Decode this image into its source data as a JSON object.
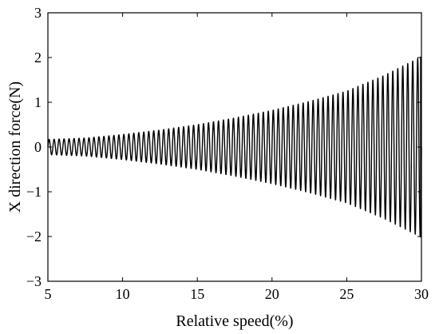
{
  "chart_data": {
    "type": "line",
    "title": "",
    "xlabel": "Relative speed(%)",
    "ylabel": "X direction force(N)",
    "xlim": [
      5,
      30
    ],
    "ylim": [
      -3,
      3
    ],
    "xticks": [
      5,
      10,
      15,
      20,
      25,
      30
    ],
    "yticks": [
      -3,
      -2,
      -1,
      0,
      1,
      2,
      3
    ],
    "xtick_labels": [
      "5",
      "10",
      "15",
      "20",
      "25",
      "30"
    ],
    "ytick_labels": [
      "−3",
      "−2",
      "−1",
      "0",
      "1",
      "2",
      "3"
    ],
    "grid": false,
    "legend": null,
    "series": [
      {
        "style": "oscillating signal with growing amplitude",
        "color": "#000000",
        "x_start": 5,
        "x_end": 30,
        "cycles": 75,
        "envelope": {
          "x": [
            5,
            7.5,
            10,
            12.5,
            15,
            17.5,
            20,
            22.5,
            25,
            27.5,
            30
          ],
          "amplitude": [
            0.17,
            0.2,
            0.28,
            0.38,
            0.5,
            0.65,
            0.82,
            1.02,
            1.25,
            1.6,
            2.02
          ]
        }
      }
    ]
  }
}
